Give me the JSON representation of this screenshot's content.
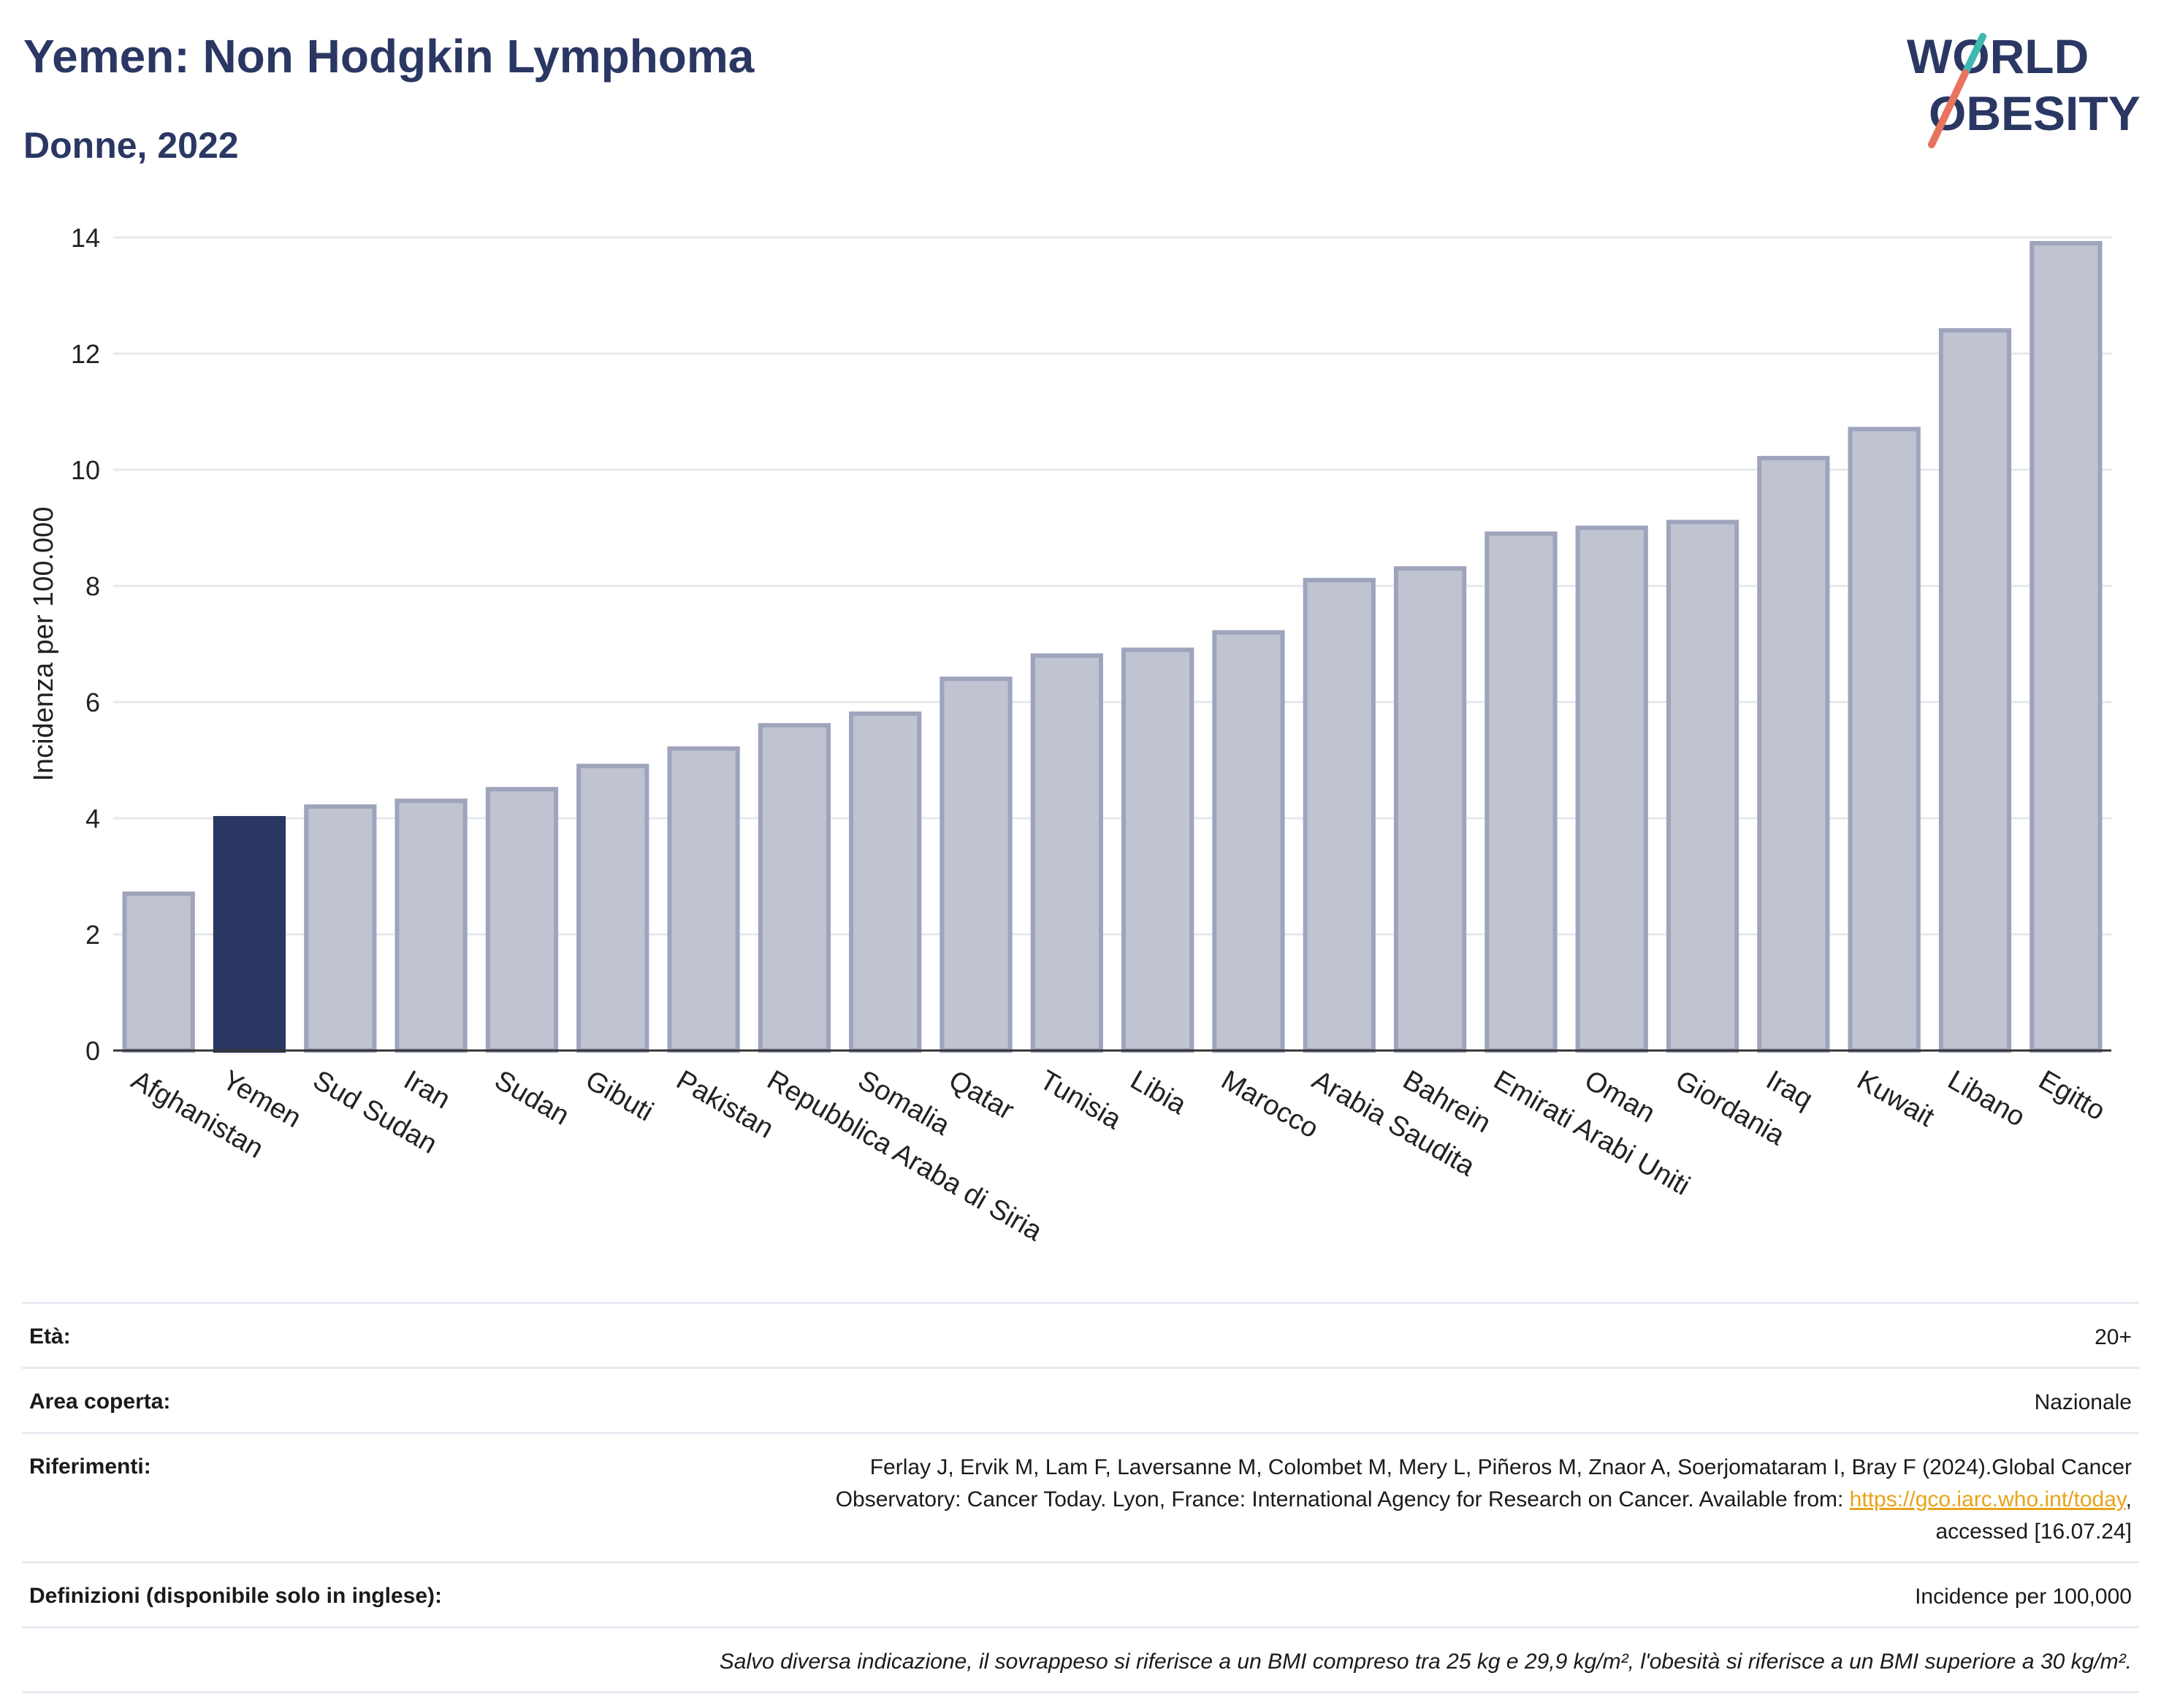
{
  "header": {
    "title": "Yemen: Non Hodgkin Lymphoma",
    "subtitle": "Donne, 2022",
    "logo_line1": "WORLD",
    "logo_line2": "OBESITY"
  },
  "colors": {
    "highlight": "#2b3763",
    "bar_fill": "#c0c3d0",
    "bar_stroke": "#9ea4bc",
    "logo_teal": "#3fb8b0",
    "logo_red": "#e8735f"
  },
  "chart_data": {
    "type": "bar",
    "title": "Yemen: Non Hodgkin Lymphoma",
    "subtitle": "Donne, 2022",
    "xlabel": "",
    "ylabel": "Incidenza per 100.000",
    "ylim": [
      0,
      14
    ],
    "yticks": [
      0,
      2,
      4,
      6,
      8,
      10,
      12,
      14
    ],
    "grid": true,
    "highlight": "Yemen",
    "categories": [
      "Afghanistan",
      "Yemen",
      "Sud Sudan",
      "Iran",
      "Sudan",
      "Gibuti",
      "Pakistan",
      "Repubblica Araba di Siria",
      "Somalia",
      "Qatar",
      "Tunisia",
      "Libia",
      "Marocco",
      "Arabia Saudita",
      "Bahrein",
      "Emirati Arabi Uniti",
      "Oman",
      "Giordania",
      "Iraq",
      "Kuwait",
      "Libano",
      "Egitto"
    ],
    "values": [
      2.7,
      4.0,
      4.2,
      4.3,
      4.5,
      4.9,
      5.2,
      5.6,
      5.8,
      6.4,
      6.8,
      6.9,
      7.2,
      8.1,
      8.3,
      8.9,
      9.0,
      9.1,
      10.2,
      10.7,
      12.4,
      13.9
    ]
  },
  "meta": {
    "eta_label": "Età:",
    "eta_value": "20+",
    "area_label": "Area coperta:",
    "area_value": "Nazionale",
    "ref_label": "Riferimenti:",
    "ref_line1": "Ferlay J, Ervik M, Lam F, Laversanne M, Colombet M, Mery L, Piñeros M, Znaor A, Soerjomataram I, Bray F (2024).Global Cancer",
    "ref_line2": "Observatory: Cancer Today. Lyon, France: International Agency for Research on Cancer. Available from: ",
    "ref_link": "https://gco.iarc.who.int/today",
    "ref_line2_end": ",",
    "ref_line3": "accessed [16.07.24]",
    "def_label": "Definizioni (disponibile solo in inglese):",
    "def_value": "Incidence per 100,000",
    "note": "Salvo diversa indicazione, il sovrappeso si riferisce a un BMI compreso tra 25 kg e 29,9 kg/m², l'obesità si riferisce a un BMI superiore a 30 kg/m²."
  }
}
